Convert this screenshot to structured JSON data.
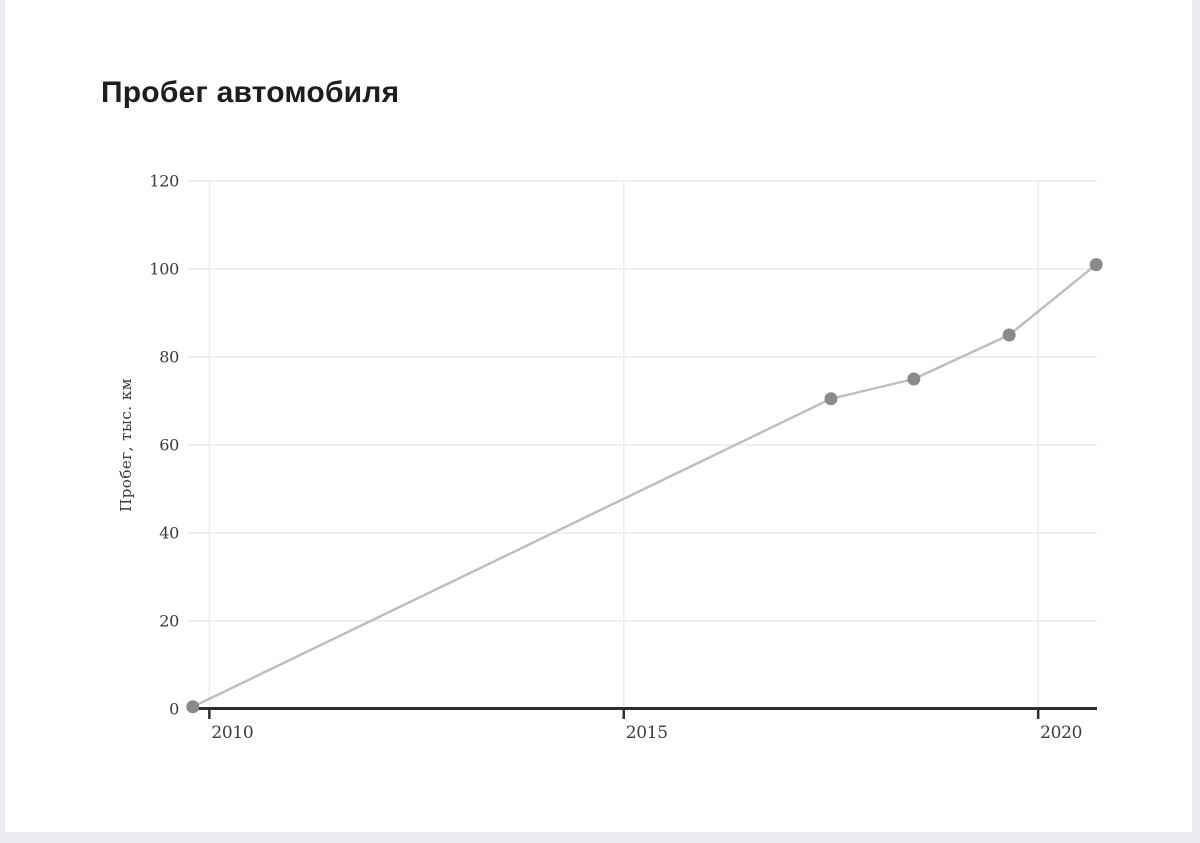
{
  "page": {
    "outer_background": "#eaebee",
    "card_background": "#ffffff"
  },
  "chart_data": {
    "type": "line",
    "title": "Пробег автомобиля",
    "ylabel": "Пробег, тыс. км",
    "x": [
      2009.8,
      2017.5,
      2018.5,
      2019.65,
      2020.7
    ],
    "y": [
      0.5,
      70.5,
      75,
      85,
      101
    ],
    "x_ticks": [
      2010,
      2015,
      2020
    ],
    "y_ticks": [
      0,
      20,
      40,
      60,
      80,
      100,
      120
    ],
    "xlim": [
      2009.73,
      2020.71
    ],
    "ylim": [
      0,
      120
    ],
    "grid": true,
    "legend": "none",
    "colors": {
      "title": "#1e1e21",
      "tick_label": "#3b3b3d",
      "axis": "#2e2e30",
      "grid": "#ececee",
      "line": "#bdbdbf",
      "marker": "#8a8a8d"
    }
  }
}
